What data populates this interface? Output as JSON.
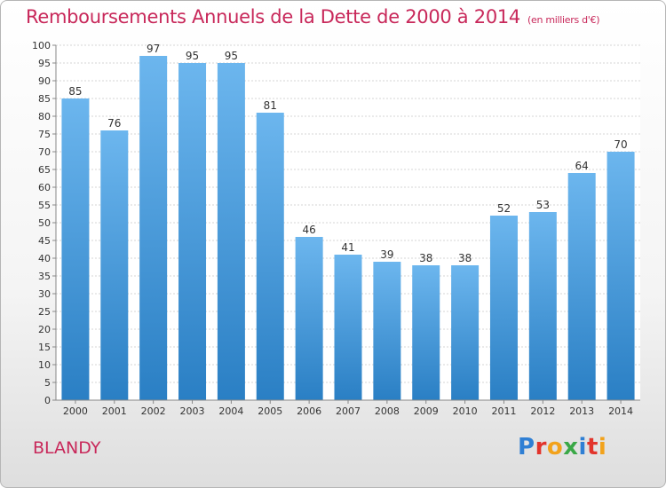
{
  "header": {
    "title": "Remboursements Annuels de la Dette de 2000 à 2014",
    "subtitle": "(en milliers d'€)"
  },
  "footer": {
    "city": "BLANDY",
    "logo_letters": [
      "P",
      "r",
      "o",
      "x",
      "i",
      "t",
      "i"
    ],
    "logo_colors": [
      "#2f7fd4",
      "#e2342c",
      "#f2a21b",
      "#3aa847",
      "#2f7fd4",
      "#e2342c",
      "#f2a21b"
    ]
  },
  "chart_data": {
    "type": "bar",
    "title": "Remboursements Annuels de la Dette de 2000 à 2014",
    "categories": [
      "2000",
      "2001",
      "2002",
      "2003",
      "2004",
      "2005",
      "2006",
      "2007",
      "2008",
      "2009",
      "2010",
      "2011",
      "2012",
      "2013",
      "2014"
    ],
    "values": [
      85,
      76,
      97,
      95,
      95,
      81,
      46,
      41,
      39,
      38,
      38,
      52,
      53,
      64,
      70
    ],
    "ylim": [
      0,
      100
    ],
    "ytick_step": 5,
    "grid": true,
    "bar_color_top": "#6cb6ee",
    "bar_color_bottom": "#2a7fc4",
    "xlabel": "",
    "ylabel": ""
  }
}
